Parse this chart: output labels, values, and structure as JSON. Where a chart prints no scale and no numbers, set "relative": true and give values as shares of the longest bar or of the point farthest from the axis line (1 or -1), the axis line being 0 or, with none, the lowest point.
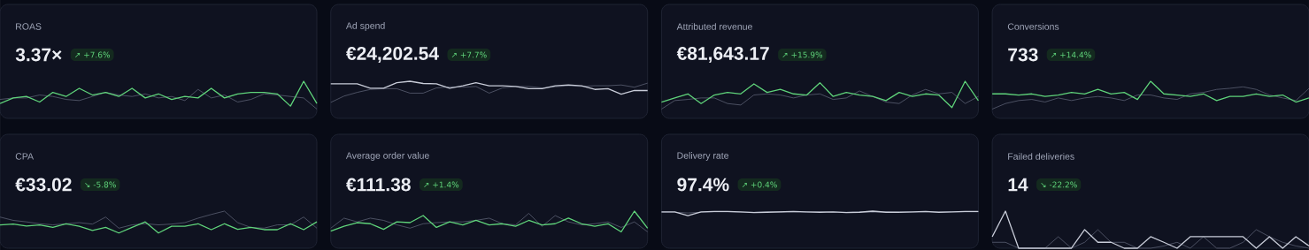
{
  "chart_data": [
    {
      "type": "line",
      "title": "ROAS",
      "subtitle": "3.37×",
      "annotations": [
        "↗ +7.6%"
      ],
      "relative": true,
      "categories": [
        null,
        null,
        null,
        null,
        null,
        null,
        null,
        null,
        null,
        null,
        null,
        null,
        null,
        null,
        null,
        null,
        null,
        null,
        null,
        null,
        null,
        null,
        null,
        null,
        null
      ],
      "series": [
        {
          "color": "#5fd37a",
          "values": [
            0.4,
            0.55,
            0.59,
            0.44,
            0.7,
            0.59,
            0.81,
            0.63,
            0.7,
            0.59,
            0.81,
            0.55,
            0.66,
            0.51,
            0.59,
            0.55,
            0.81,
            0.55,
            0.66,
            0.7,
            0.7,
            0.66,
            0.33,
            1.0,
            0.4
          ]
        },
        {
          "color": "#5a6072",
          "values": [
            0.51,
            0.55,
            0.55,
            0.63,
            0.59,
            0.51,
            0.48,
            0.59,
            0.7,
            0.63,
            0.59,
            0.66,
            0.55,
            0.59,
            0.48,
            0.78,
            0.55,
            0.63,
            0.44,
            0.51,
            0.66,
            0.63,
            0.59,
            0.55,
            0.25
          ]
        }
      ]
    },
    {
      "type": "line",
      "title": "Ad spend",
      "subtitle": "€24,202.54",
      "annotations": [
        "↗ +7.7%"
      ],
      "relative": true,
      "categories": [
        null,
        null,
        null,
        null,
        null,
        null,
        null,
        null,
        null,
        null,
        null,
        null,
        null,
        null,
        null,
        null,
        null,
        null,
        null,
        null,
        null,
        null,
        null,
        null,
        null
      ],
      "series": [
        {
          "color": "#c8ccd8",
          "values": [
            0.93,
            0.93,
            0.93,
            0.81,
            0.81,
            0.96,
            1.0,
            0.94,
            0.93,
            0.81,
            0.88,
            0.96,
            0.88,
            0.88,
            0.86,
            0.8,
            0.8,
            0.88,
            0.9,
            0.88,
            0.78,
            0.8,
            0.65,
            0.75,
            0.75
          ]
        },
        {
          "color": "#5a6072",
          "values": [
            0.43,
            0.6,
            0.7,
            0.78,
            0.8,
            0.8,
            0.68,
            0.68,
            0.82,
            0.85,
            0.84,
            0.86,
            0.68,
            0.82,
            0.86,
            0.86,
            0.82,
            0.85,
            0.88,
            0.86,
            0.88,
            0.88,
            0.9,
            0.84,
            0.95
          ]
        }
      ]
    },
    {
      "type": "line",
      "title": "Attributed revenue",
      "subtitle": "€81,643.17",
      "annotations": [
        "↗ +15.9%"
      ],
      "relative": true,
      "categories": [
        null,
        null,
        null,
        null,
        null,
        null,
        null,
        null,
        null,
        null,
        null,
        null,
        null,
        null,
        null,
        null,
        null,
        null,
        null,
        null,
        null,
        null,
        null,
        null,
        null
      ],
      "series": [
        {
          "color": "#5fd37a",
          "values": [
            0.44,
            0.55,
            0.66,
            0.4,
            0.63,
            0.7,
            0.66,
            0.93,
            0.7,
            0.78,
            0.66,
            0.63,
            0.96,
            0.59,
            0.7,
            0.63,
            0.59,
            0.48,
            0.7,
            0.59,
            0.66,
            0.63,
            0.29,
            1.0,
            0.48
          ]
        },
        {
          "color": "#5a6072",
          "values": [
            0.25,
            0.48,
            0.51,
            0.55,
            0.55,
            0.4,
            0.36,
            0.63,
            0.66,
            0.63,
            0.55,
            0.63,
            0.66,
            0.51,
            0.55,
            0.74,
            0.59,
            0.44,
            0.4,
            0.63,
            0.78,
            0.66,
            0.7,
            0.4,
            0.59
          ]
        }
      ]
    },
    {
      "type": "line",
      "title": "Conversions",
      "subtitle": "733",
      "annotations": [
        "↗ +14.4%"
      ],
      "relative": true,
      "categories": [
        null,
        null,
        null,
        null,
        null,
        null,
        null,
        null,
        null,
        null,
        null,
        null,
        null,
        null,
        null,
        null,
        null,
        null,
        null,
        null,
        null,
        null,
        null,
        null,
        null
      ],
      "series": [
        {
          "color": "#5fd37a",
          "values": [
            0.66,
            0.66,
            0.63,
            0.66,
            0.59,
            0.63,
            0.7,
            0.66,
            0.78,
            0.66,
            0.7,
            0.51,
            1.0,
            0.66,
            0.63,
            0.59,
            0.66,
            0.48,
            0.59,
            0.59,
            0.66,
            0.59,
            0.63,
            0.44,
            0.55
          ]
        },
        {
          "color": "#5a6072",
          "values": [
            0.25,
            0.4,
            0.48,
            0.51,
            0.44,
            0.55,
            0.48,
            0.55,
            0.59,
            0.55,
            0.48,
            0.63,
            0.63,
            0.55,
            0.51,
            0.66,
            0.7,
            0.78,
            0.81,
            0.85,
            0.78,
            0.63,
            0.55,
            0.48,
            0.81
          ]
        }
      ]
    },
    {
      "type": "line",
      "title": "CPA",
      "subtitle": "€33.02",
      "annotations": [
        "↘ -5.8%"
      ],
      "relative": true,
      "categories": [
        null,
        null,
        null,
        null,
        null,
        null,
        null,
        null,
        null,
        null,
        null,
        null,
        null,
        null,
        null,
        null,
        null,
        null,
        null,
        null,
        null,
        null,
        null,
        null,
        null
      ],
      "series": [
        {
          "color": "#5fd37a",
          "values": [
            0.63,
            0.65,
            0.6,
            0.63,
            0.56,
            0.66,
            0.59,
            0.48,
            0.56,
            0.41,
            0.56,
            0.71,
            0.41,
            0.59,
            0.59,
            0.66,
            0.5,
            0.66,
            0.51,
            0.56,
            0.5,
            0.5,
            0.66,
            0.5,
            0.71
          ]
        },
        {
          "color": "#5a6072",
          "values": [
            0.84,
            0.75,
            0.71,
            0.66,
            0.63,
            0.66,
            0.69,
            0.65,
            0.84,
            0.54,
            0.63,
            0.66,
            0.63,
            0.65,
            0.69,
            0.81,
            0.91,
            1.0,
            0.69,
            0.56,
            0.54,
            0.63,
            0.63,
            0.84,
            0.54
          ]
        }
      ]
    },
    {
      "type": "line",
      "title": "Average order value",
      "subtitle": "€111.38",
      "annotations": [
        "↗ +1.4%"
      ],
      "relative": true,
      "categories": [
        null,
        null,
        null,
        null,
        null,
        null,
        null,
        null,
        null,
        null,
        null,
        null,
        null,
        null,
        null,
        null,
        null,
        null,
        null,
        null,
        null,
        null,
        null,
        null,
        null
      ],
      "series": [
        {
          "color": "#5fd37a",
          "values": [
            0.46,
            0.59,
            0.69,
            0.66,
            0.51,
            0.71,
            0.69,
            0.88,
            0.56,
            0.71,
            0.63,
            0.75,
            0.63,
            0.66,
            0.59,
            0.75,
            0.63,
            0.66,
            0.81,
            0.66,
            0.59,
            0.66,
            0.44,
            1.0,
            0.54
          ]
        },
        {
          "color": "#5a6072",
          "values": [
            0.54,
            0.81,
            0.71,
            0.81,
            0.75,
            0.63,
            0.54,
            0.66,
            0.69,
            0.71,
            0.71,
            0.75,
            0.81,
            0.66,
            0.63,
            0.94,
            0.59,
            0.88,
            0.71,
            0.63,
            0.66,
            0.71,
            0.56,
            0.71,
            0.44
          ]
        }
      ]
    },
    {
      "type": "line",
      "title": "Delivery rate",
      "subtitle": "97.4%",
      "annotations": [
        "↗ +0.4%"
      ],
      "relative": true,
      "categories": [
        null,
        null,
        null,
        null,
        null,
        null,
        null,
        null,
        null,
        null,
        null,
        null,
        null,
        null,
        null,
        null,
        null,
        null,
        null,
        null,
        null,
        null,
        null,
        null,
        null
      ],
      "series": [
        {
          "color": "#c8ccd8",
          "values": [
            0.98,
            0.98,
            0.88,
            0.98,
            0.99,
            0.99,
            0.98,
            0.96,
            0.97,
            0.98,
            0.99,
            0.98,
            0.97,
            0.98,
            0.96,
            0.97,
            1.0,
            0.97,
            0.97,
            0.98,
            0.99,
            0.97,
            0.98,
            0.99,
            0.99
          ]
        },
        {
          "color": "#5a6072",
          "values": [
            0.97,
            0.97,
            0.95,
            0.97,
            0.98,
            0.98,
            0.97,
            0.97,
            0.98,
            0.97,
            0.98,
            0.97,
            0.98,
            0.97,
            0.97,
            0.98,
            0.97,
            0.98,
            0.97,
            0.97,
            0.98,
            0.97,
            0.98,
            0.98,
            0.98
          ]
        }
      ]
    },
    {
      "type": "line",
      "title": "Failed deliveries",
      "subtitle": "14",
      "annotations": [
        "↘ -22.2%"
      ],
      "relative": true,
      "categories": [
        null,
        null,
        null,
        null,
        null,
        null,
        null,
        null,
        null,
        null,
        null,
        null,
        null,
        null,
        null,
        null,
        null,
        null,
        null,
        null,
        null,
        null,
        null,
        null,
        null
      ],
      "series": [
        {
          "color": "#c8ccd8",
          "values": [
            0.31,
            1.0,
            0.0,
            0.0,
            0.0,
            0.0,
            0.0,
            0.5,
            0.16,
            0.16,
            0.0,
            0.0,
            0.31,
            0.16,
            0.0,
            0.31,
            0.31,
            0.31,
            0.31,
            0.31,
            0.0,
            0.31,
            0.0,
            0.31,
            0.06
          ]
        },
        {
          "color": "#5a6072",
          "values": [
            0.16,
            0.16,
            0.0,
            0.0,
            0.0,
            0.31,
            0.0,
            0.16,
            0.5,
            0.16,
            0.16,
            0.0,
            0.0,
            0.06,
            0.16,
            0.0,
            0.31,
            0.0,
            0.0,
            0.16,
            0.5,
            0.31,
            0.16,
            0.06,
            0.0
          ]
        }
      ]
    }
  ]
}
